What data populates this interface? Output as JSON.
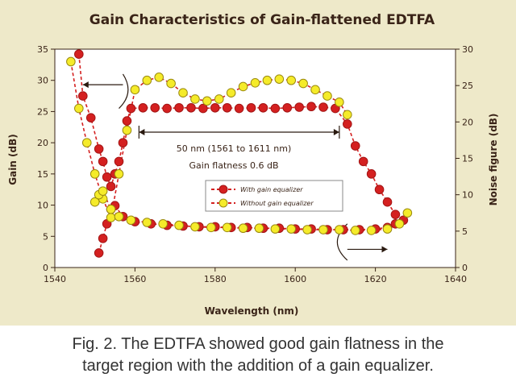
{
  "chart_data": {
    "type": "scatter",
    "title": "Gain Characteristics of Gain-flattened EDTFA",
    "xlabel": "Wavelength (nm)",
    "ylabel_left": "Gain (dB)",
    "ylabel_right": "Noise figure (dB)",
    "xlim": [
      1540,
      1640
    ],
    "ylim_left": [
      0,
      35
    ],
    "ylim_right": [
      0,
      30
    ],
    "x_ticks": [
      1540,
      1560,
      1580,
      1600,
      1620,
      1640
    ],
    "y_ticks_left": [
      0,
      5,
      10,
      15,
      20,
      25,
      30,
      35
    ],
    "y_ticks_right": [
      0,
      5,
      10,
      15,
      20,
      25,
      30
    ],
    "legend": {
      "placement": "center"
    },
    "annotations": [
      "50 nm (1561 to 1611 nm)",
      "Gain flatness 0.6 dB"
    ],
    "series": [
      {
        "name": "With gain equalizer",
        "color": "#d42020",
        "marker_fill": "#d42020",
        "curves": [
          {
            "measure": "Gain",
            "axis": "left",
            "x": [
              1546,
              1547,
              1549,
              1551,
              1552,
              1553,
              1554,
              1555,
              1556,
              1557,
              1558,
              1559,
              1562,
              1565,
              1568,
              1571,
              1574,
              1577,
              1580,
              1583,
              1586,
              1589,
              1592,
              1595,
              1598,
              1601,
              1604,
              1607,
              1610,
              1613,
              1615,
              1617,
              1619,
              1621,
              1623,
              1625
            ],
            "y": [
              34.2,
              27.5,
              24,
              19,
              17,
              14.5,
              13,
              15,
              17,
              20,
              23.5,
              25.5,
              25.6,
              25.6,
              25.5,
              25.6,
              25.6,
              25.5,
              25.6,
              25.6,
              25.5,
              25.6,
              25.6,
              25.5,
              25.6,
              25.7,
              25.8,
              25.7,
              25.5,
              23,
              19.5,
              17,
              15,
              12.5,
              10.5,
              8.5
            ]
          },
          {
            "measure": "Noise figure",
            "axis": "right",
            "x": [
              1551,
              1552,
              1553,
              1554,
              1555,
              1557,
              1560,
              1564,
              1568,
              1572,
              1576,
              1580,
              1584,
              1588,
              1592,
              1596,
              1600,
              1604,
              1608,
              1612,
              1616,
              1620,
              1623,
              1625,
              1627
            ],
            "y": [
              2,
              4,
              6,
              8,
              8.5,
              7,
              6.3,
              6,
              5.8,
              5.7,
              5.6,
              5.6,
              5.5,
              5.5,
              5.4,
              5.4,
              5.3,
              5.3,
              5.2,
              5.2,
              5.2,
              5.3,
              5.5,
              6,
              6.5
            ]
          }
        ]
      },
      {
        "name": "Without gain equalizer",
        "color": "#d42020",
        "marker_fill": "#f5eb2a",
        "curves": [
          {
            "measure": "Gain",
            "axis": "left",
            "x": [
              1544,
              1546,
              1548,
              1550,
              1552,
              1554,
              1556,
              1558,
              1560,
              1563,
              1566,
              1569,
              1572,
              1575,
              1578,
              1581,
              1584,
              1587,
              1590,
              1593,
              1596,
              1599,
              1602,
              1605,
              1608,
              1611,
              1613
            ],
            "y": [
              33,
              25.5,
              20,
              15,
              11,
              8,
              15,
              22,
              28.5,
              30,
              30.5,
              29.5,
              28,
              27,
              26.7,
              27,
              28,
              29,
              29.6,
              30,
              30.2,
              30,
              29.5,
              28.5,
              27.5,
              26.5,
              24.5
            ]
          },
          {
            "measure": "Noise figure",
            "axis": "right",
            "x": [
              1550,
              1551,
              1552,
              1554,
              1556,
              1559,
              1563,
              1567,
              1571,
              1575,
              1579,
              1583,
              1587,
              1591,
              1595,
              1599,
              1603,
              1607,
              1611,
              1615,
              1619,
              1623,
              1626,
              1628
            ],
            "y": [
              9,
              10,
              10.5,
              8,
              7,
              6.5,
              6.2,
              6,
              5.8,
              5.6,
              5.5,
              5.5,
              5.4,
              5.4,
              5.3,
              5.3,
              5.2,
              5.2,
              5.2,
              5.1,
              5.1,
              5.3,
              6,
              7.5
            ]
          }
        ]
      }
    ]
  },
  "caption": {
    "line1": "Fig. 2. The EDTFA showed good gain flatness in the",
    "line2": "target region with the addition of a gain equalizer."
  }
}
